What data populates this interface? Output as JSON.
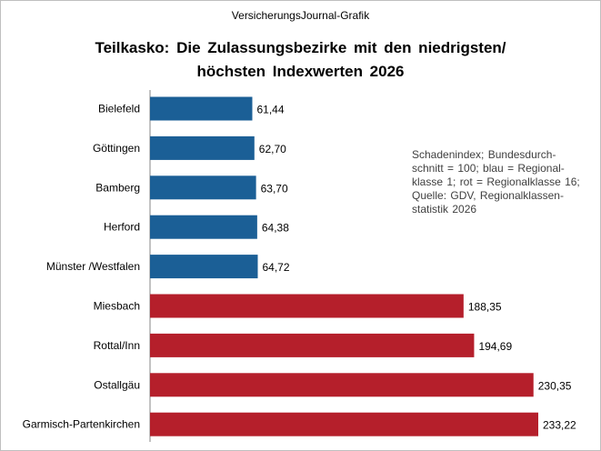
{
  "source": "VersicherungsJournal-Grafik",
  "title_lines": [
    "Teilkasko: Die Zulassungsbezirke mit den  niedrigsten/",
    "höchsten Indexwerten 2026"
  ],
  "note_lines": [
    "Schadenindex; Bundesdurch-",
    "schnitt = 100; blau = Regional-",
    "klasse 1; rot = Regionalklasse  16;",
    "Quelle: GDV, Regionalklassen-",
    "statistik 2026"
  ],
  "colors": {
    "low": "#1b5f96",
    "high": "#b51f2b"
  },
  "chart_data": {
    "type": "bar",
    "orientation": "horizontal",
    "title": "Teilkasko: Die Zulassungsbezirke mit den niedrigsten/ höchsten Indexwerten 2026",
    "xlim": [
      0,
      233.22
    ],
    "categories": [
      "Bielefeld",
      "Göttingen",
      "Bamberg",
      "Herford",
      "Münster /Westfalen",
      "Miesbach",
      "Rottal/Inn",
      "Ostallgäu",
      "Garmisch-Partenkirchen"
    ],
    "values": [
      61.44,
      62.7,
      63.7,
      64.38,
      64.72,
      188.35,
      194.69,
      230.35,
      233.22
    ],
    "value_labels": [
      "61,44",
      "62,70",
      "63,70",
      "64,38",
      "64,72",
      "188,35",
      "194,69",
      "230,35",
      "233,22"
    ],
    "groups": [
      "low",
      "low",
      "low",
      "low",
      "low",
      "high",
      "high",
      "high",
      "high"
    ],
    "legend": {
      "low": "Regionalklasse 1",
      "high": "Regionalklasse 16"
    }
  }
}
